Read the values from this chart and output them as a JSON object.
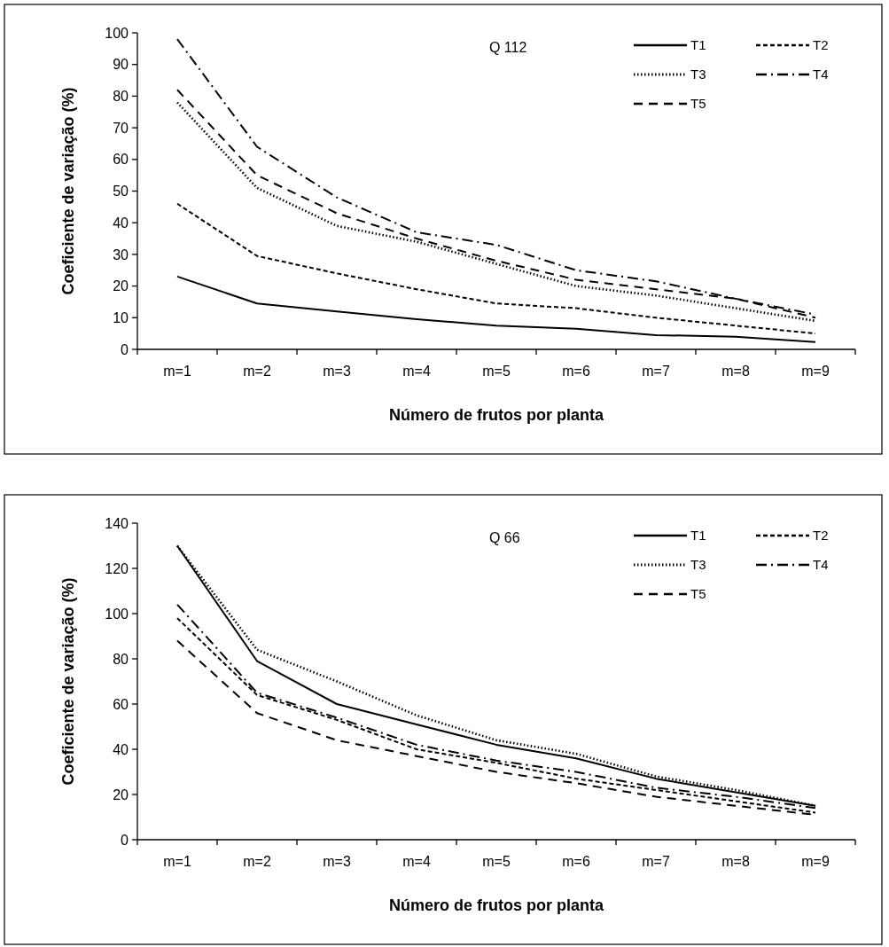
{
  "chart_data": [
    {
      "type": "line",
      "title": "Q 112",
      "xlabel": "Número de frutos por planta",
      "ylabel": "Coeficiente de variação (%)",
      "categories": [
        "m=1",
        "m=2",
        "m=3",
        "m=4",
        "m=5",
        "m=6",
        "m=7",
        "m=8",
        "m=9"
      ],
      "ylim": [
        0,
        100
      ],
      "yticks": [
        0,
        10,
        20,
        30,
        40,
        50,
        60,
        70,
        80,
        90,
        100
      ],
      "grid": false,
      "legend": "top right",
      "marker": "none",
      "series": [
        {
          "name": "T1",
          "color": "#000000",
          "line_style": "solid",
          "values": [
            23,
            14.5,
            12,
            9.5,
            7.5,
            6.5,
            4.5,
            4,
            2.3
          ]
        },
        {
          "name": "T2",
          "color": "#000000",
          "line_style": "dashed",
          "values": [
            46,
            29.5,
            24,
            19,
            14.5,
            13,
            10,
            7.5,
            5
          ]
        },
        {
          "name": "T3",
          "color": "#000000",
          "line_style": "dotted",
          "values": [
            78,
            51,
            39,
            34,
            27,
            20,
            17,
            13,
            9
          ]
        },
        {
          "name": "T4",
          "color": "#000000",
          "line_style": "dashdot",
          "values": [
            98,
            64,
            48,
            37,
            33,
            25,
            21.5,
            16,
            11
          ]
        },
        {
          "name": "T5",
          "color": "#000000",
          "line_style": "longdash",
          "values": [
            82,
            55,
            43,
            35,
            28,
            22,
            19,
            16,
            10
          ]
        }
      ]
    },
    {
      "type": "line",
      "title": "Q 66",
      "xlabel": "Número de frutos por planta",
      "ylabel": "Coeficiente de variação (%)",
      "categories": [
        "m=1",
        "m=2",
        "m=3",
        "m=4",
        "m=5",
        "m=6",
        "m=7",
        "m=8",
        "m=9"
      ],
      "ylim": [
        0,
        140
      ],
      "yticks": [
        0,
        20,
        40,
        60,
        80,
        100,
        120,
        140
      ],
      "grid": false,
      "legend": "top right",
      "marker": "none",
      "series": [
        {
          "name": "T1",
          "color": "#000000",
          "line_style": "solid",
          "values": [
            130,
            79,
            60,
            51,
            42,
            36,
            27,
            21,
            15
          ]
        },
        {
          "name": "T2",
          "color": "#000000",
          "line_style": "dashed",
          "values": [
            98,
            64,
            53,
            40,
            34,
            27,
            22,
            17,
            12
          ]
        },
        {
          "name": "T3",
          "color": "#000000",
          "line_style": "dotted",
          "values": [
            130,
            84,
            70,
            55,
            44,
            38,
            28,
            22,
            15
          ]
        },
        {
          "name": "T4",
          "color": "#000000",
          "line_style": "dashdot",
          "values": [
            104,
            65,
            54,
            42,
            35,
            30,
            23,
            19,
            14
          ]
        },
        {
          "name": "T5",
          "color": "#000000",
          "line_style": "longdash",
          "values": [
            88,
            56,
            44,
            37,
            30,
            25,
            19,
            15,
            11
          ]
        }
      ]
    }
  ]
}
